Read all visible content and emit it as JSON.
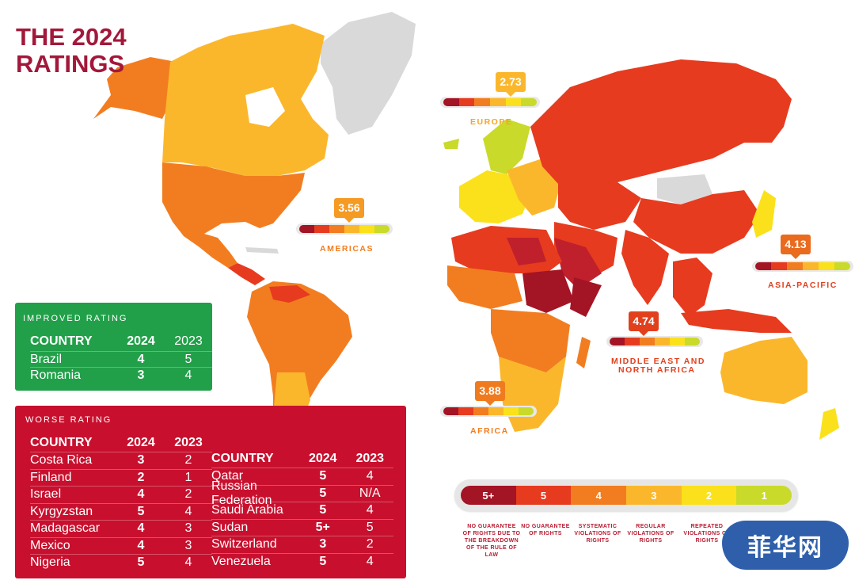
{
  "title": {
    "line1": "THE 2024",
    "line2": "RATINGS"
  },
  "colors": {
    "r5plus": "#a31425",
    "r5": "#e63b1f",
    "r4": "#f27d20",
    "r3": "#fbb72c",
    "r2": "#fbe11b",
    "r1": "#c9da2a",
    "nodata": "#d9d9d9"
  },
  "regions": {
    "europe": {
      "value": "2.73",
      "label": "EUROPE",
      "color": "#fbb72c"
    },
    "americas": {
      "value": "3.56",
      "label": "AMERICAS",
      "color": "#f59a23"
    },
    "asia_pacific": {
      "value": "4.13",
      "label": "ASIA-PACIFIC",
      "color": "#ea6a1e"
    },
    "mena": {
      "value": "4.74",
      "label_line1": "MIDDLE EAST AND",
      "label_line2": "NORTH AFRICA",
      "color": "#e2401d"
    },
    "africa": {
      "value": "3.88",
      "label": "AFRICA",
      "color": "#f07b1f"
    }
  },
  "improved": {
    "heading": "IMPROVED RATING",
    "col_country": "COUNTRY",
    "col_2024": "2024",
    "col_2023": "2023",
    "rows": [
      {
        "country": "Brazil",
        "y2024": "4",
        "y2023": "5"
      },
      {
        "country": "Romania",
        "y2024": "3",
        "y2023": "4"
      }
    ]
  },
  "worse": {
    "heading": "WORSE RATING",
    "col_country": "COUNTRY",
    "col_2024": "2024",
    "col_2023": "2023",
    "left_rows": [
      {
        "country": "Costa Rica",
        "y2024": "3",
        "y2023": "2"
      },
      {
        "country": "Finland",
        "y2024": "2",
        "y2023": "1"
      },
      {
        "country": "Israel",
        "y2024": "4",
        "y2023": "2"
      },
      {
        "country": "Kyrgyzstan",
        "y2024": "5",
        "y2023": "4"
      },
      {
        "country": "Madagascar",
        "y2024": "4",
        "y2023": "3"
      },
      {
        "country": "Mexico",
        "y2024": "4",
        "y2023": "3"
      },
      {
        "country": "Nigeria",
        "y2024": "5",
        "y2023": "4"
      }
    ],
    "right_rows": [
      {
        "country": "Qatar",
        "y2024": "5",
        "y2023": "4"
      },
      {
        "country": "Russian Federation",
        "y2024": "5",
        "y2023": "N/A"
      },
      {
        "country": "Saudi Arabia",
        "y2024": "5",
        "y2023": "4"
      },
      {
        "country": "Sudan",
        "y2024": "5+",
        "y2023": "5"
      },
      {
        "country": "Switzerland",
        "y2024": "3",
        "y2023": "2"
      },
      {
        "country": "Venezuela",
        "y2024": "5",
        "y2023": "4"
      }
    ]
  },
  "legend": {
    "segments": [
      {
        "label": "5+",
        "color": "#a31425"
      },
      {
        "label": "5",
        "color": "#e63b1f"
      },
      {
        "label": "4",
        "color": "#f27d20"
      },
      {
        "label": "3",
        "color": "#fbb72c"
      },
      {
        "label": "2",
        "color": "#fbe11b"
      },
      {
        "label": "1",
        "color": "#c9da2a"
      }
    ],
    "notes": [
      "NO GUARANTEE OF RIGHTS DUE TO THE BREAKDOWN OF THE RULE OF LAW",
      "NO GUARANTEE OF RIGHTS",
      "SYSTEMATIC VIOLATIONS OF RIGHTS",
      "REGULAR VIOLATIONS OF RIGHTS",
      "REPEATED VIOLATIONS OF RIGHTS"
    ]
  },
  "watermark": "菲华网"
}
